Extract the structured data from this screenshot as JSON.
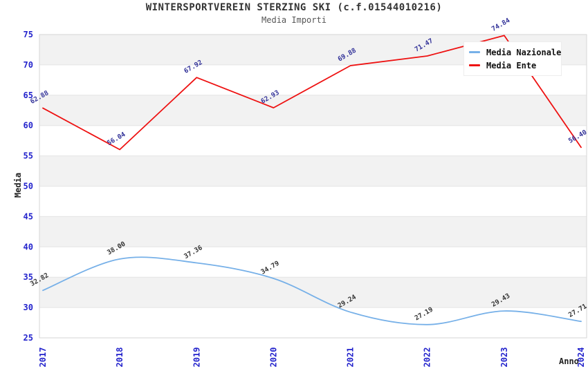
{
  "chart_data": {
    "type": "line",
    "title": "WINTERSPORTVEREIN STERZING SKI (c.f.01544010216)",
    "subtitle": "Media Importi",
    "xlabel": "Anno",
    "ylabel": "Media",
    "categories": [
      "2017",
      "2018",
      "2019",
      "2020",
      "2021",
      "2022",
      "2023",
      "2024"
    ],
    "ylim": [
      25,
      75
    ],
    "ytick_step": 5,
    "grid": "horizontal-bands-alternating",
    "legend_position": "top-right-overlay",
    "series": [
      {
        "name": "Media Nazionale",
        "line_style": "spline",
        "color": "#76b0e8",
        "label_color": "#333333",
        "values": [
          32.82,
          38.0,
          37.36,
          34.79,
          29.24,
          27.19,
          29.43,
          27.71
        ]
      },
      {
        "name": "Media Ente",
        "line_style": "straight",
        "color": "#ee1111",
        "label_color": "#333399",
        "values": [
          62.88,
          56.04,
          67.92,
          62.93,
          69.88,
          71.47,
          74.84,
          56.4
        ]
      }
    ],
    "colors": {
      "tick_label": "#2323cc",
      "band_gray": "#f2f2f2",
      "band_white": "#ffffff",
      "grid_line": "#e4e4e4",
      "plot_border": "#d6d6d6",
      "title": "#333333",
      "subtitle": "#555555",
      "legend_text": "#111111"
    }
  }
}
